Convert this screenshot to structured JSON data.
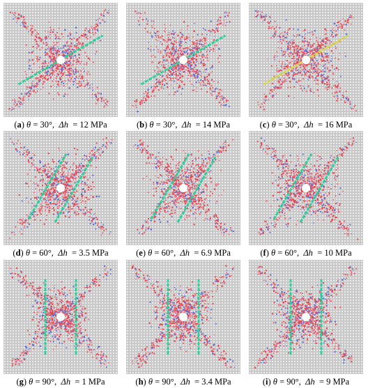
{
  "figure": {
    "panels": [
      {
        "id": "a",
        "theta": "30°",
        "dh": "12 MPa",
        "angle_deg": 30,
        "pair": false,
        "crack": "#2ecf9a"
      },
      {
        "id": "b",
        "theta": "30°",
        "dh": "14 MPa",
        "angle_deg": 30,
        "pair": false,
        "crack": "#2ecf9a"
      },
      {
        "id": "c",
        "theta": "30°",
        "dh": "16 MPa",
        "angle_deg": 30,
        "pair": false,
        "crack": "#d6d64a"
      },
      {
        "id": "d",
        "theta": "60°",
        "dh": "3.5 MPa",
        "angle_deg": 60,
        "pair": true,
        "crack": "#2ecf9a"
      },
      {
        "id": "e",
        "theta": "60°",
        "dh": "6.9 MPa",
        "angle_deg": 60,
        "pair": true,
        "crack": "#2ecf9a"
      },
      {
        "id": "f",
        "theta": "60°",
        "dh": "10 MPa",
        "angle_deg": 60,
        "pair": true,
        "crack": "#2ecf9a"
      },
      {
        "id": "g",
        "theta": "90°",
        "dh": "1 MPa",
        "angle_deg": 90,
        "pair": true,
        "crack": "#2ecf9a"
      },
      {
        "id": "h",
        "theta": "90°",
        "dh": "3.4 MPa",
        "angle_deg": 90,
        "pair": true,
        "crack": "#2ecf9a"
      },
      {
        "id": "i",
        "theta": "90°",
        "dh": "9 MPa",
        "angle_deg": 90,
        "pair": true,
        "crack": "#2ecf9a"
      }
    ],
    "damage_colors": [
      "#e8444f",
      "#e8444f",
      "#f06a74",
      "#5a6fd8"
    ]
  }
}
